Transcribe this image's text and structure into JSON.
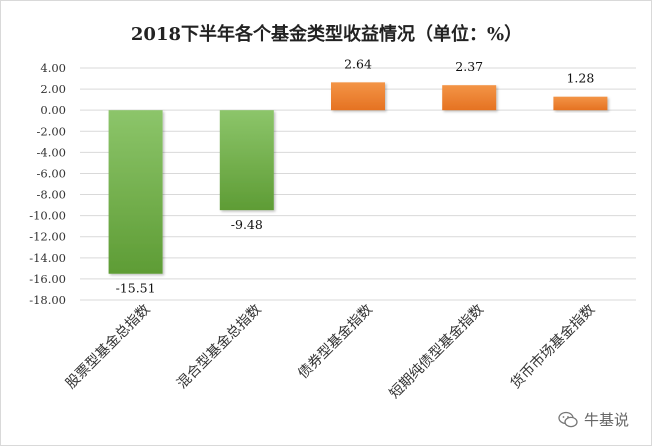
{
  "chart_data": {
    "type": "bar",
    "title": "2018下半年各个基金类型收益情况（单位：%）",
    "categories": [
      "股票型基金总指数",
      "混合型基金总指数",
      "债券型基金指数",
      "短期纯债型基金指数",
      "货币市场基金指数"
    ],
    "values": [
      -15.51,
      -9.48,
      2.64,
      2.37,
      1.28
    ],
    "data_labels": [
      "-15.51",
      "-9.48",
      "2.64",
      "2.37",
      "1.28"
    ],
    "ylim": [
      -18,
      4
    ],
    "yticks": [
      4,
      2,
      0,
      -2,
      -4,
      -6,
      -8,
      -10,
      -12,
      -14,
      -16,
      -18
    ],
    "ytick_labels": [
      "4.00",
      "2.00",
      "0.00",
      "-2.00",
      "-4.00",
      "-6.00",
      "-8.00",
      "-10.00",
      "-12.00",
      "-14.00",
      "-16.00",
      "-18.00"
    ],
    "xlabel": "",
    "ylabel": "",
    "grid": true,
    "colors": {
      "negative": "#70ad47",
      "positive": "#ed7d31",
      "gridline": "#d9d9d9"
    }
  },
  "watermark": {
    "text": "牛基说",
    "icon": "wechat-icon"
  }
}
